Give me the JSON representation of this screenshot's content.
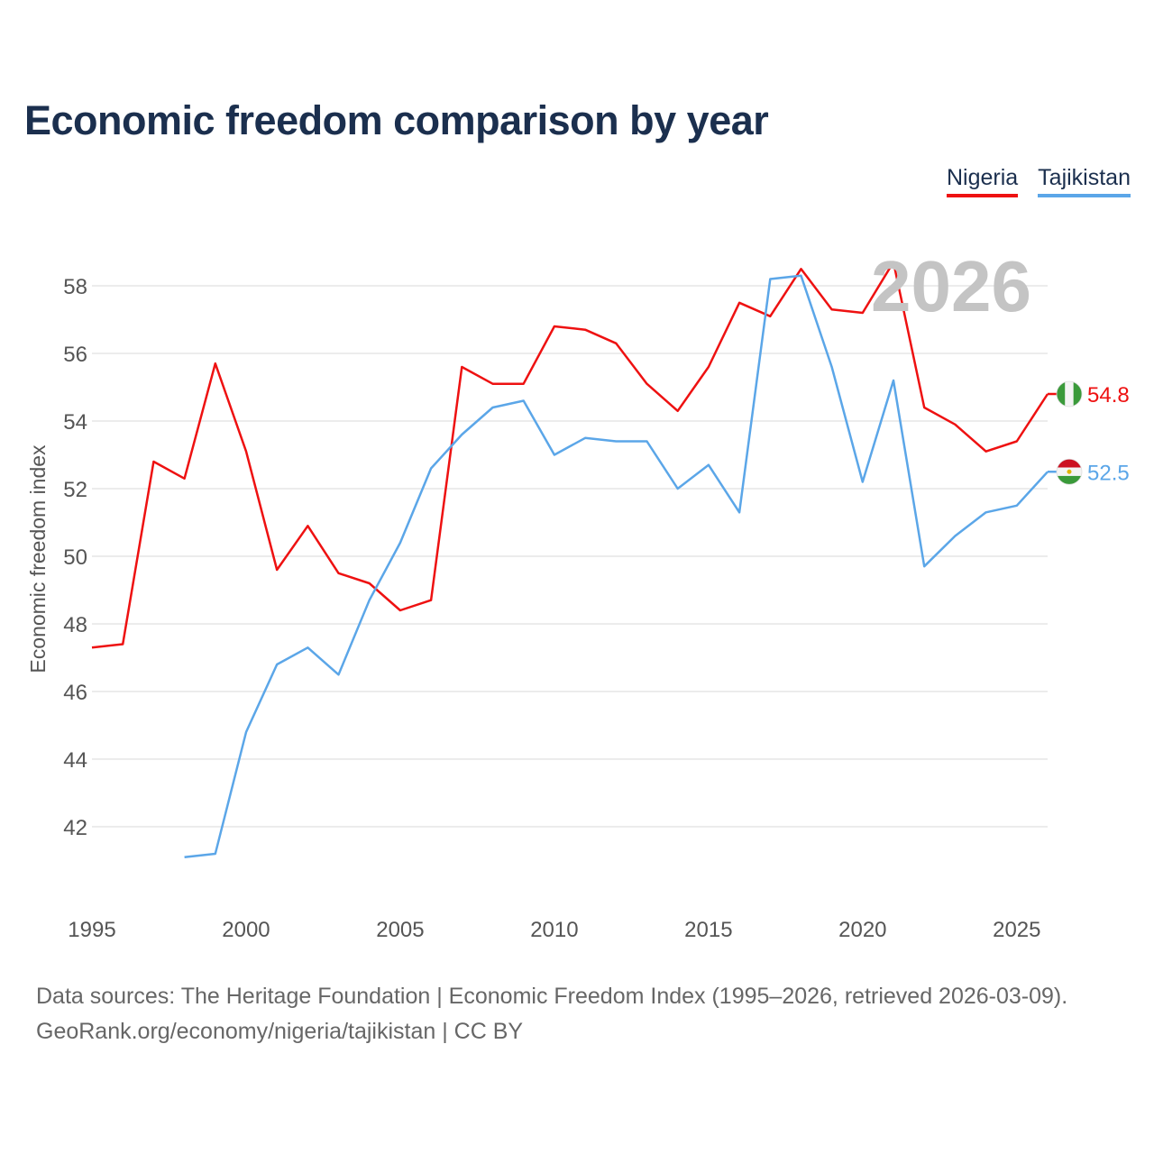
{
  "title": "Economic freedom comparison by year",
  "year_overlay": "2026",
  "footer": {
    "line1": "Data sources: The Heritage Foundation | Economic Freedom Index (1995–2026, retrieved 2026-03-09).",
    "line2": "GeoRank.org/economy/nigeria/tajikistan | CC BY"
  },
  "colors": {
    "nigeria": "#ee1111",
    "tajikistan": "#5ba6e8",
    "grid": "#e6e6e6"
  },
  "icons": {
    "nigeria": "nigeria-flag-icon",
    "tajikistan": "tajikistan-flag-icon"
  },
  "chart_data": {
    "type": "line",
    "title": "Economic freedom comparison by year",
    "xlabel": "",
    "ylabel": "Economic freedom index",
    "xlim": [
      1995,
      2026
    ],
    "ylim": [
      40,
      59.5
    ],
    "yticks": [
      42,
      44,
      46,
      48,
      50,
      52,
      54,
      56,
      58
    ],
    "xticks": [
      1995,
      2000,
      2005,
      2010,
      2015,
      2020,
      2025
    ],
    "legend": "top-right",
    "grid": true,
    "series": [
      {
        "name": "Nigeria",
        "end_label": "54.8",
        "x": [
          1995,
          1996,
          1997,
          1998,
          1999,
          2000,
          2001,
          2002,
          2003,
          2004,
          2005,
          2006,
          2007,
          2008,
          2009,
          2010,
          2011,
          2012,
          2013,
          2014,
          2015,
          2016,
          2017,
          2018,
          2019,
          2020,
          2021,
          2022,
          2023,
          2024,
          2025,
          2026
        ],
        "values": [
          47.3,
          47.4,
          52.8,
          52.3,
          55.7,
          53.1,
          49.6,
          50.9,
          49.5,
          49.2,
          48.4,
          48.7,
          55.6,
          55.1,
          55.1,
          56.8,
          56.7,
          56.3,
          55.1,
          54.3,
          55.6,
          57.5,
          57.1,
          58.5,
          57.3,
          57.2,
          58.7,
          54.4,
          53.9,
          53.1,
          53.4,
          54.8
        ]
      },
      {
        "name": "Tajikistan",
        "end_label": "52.5",
        "x": [
          1998,
          1999,
          2000,
          2001,
          2002,
          2003,
          2004,
          2005,
          2006,
          2007,
          2008,
          2009,
          2010,
          2011,
          2012,
          2013,
          2014,
          2015,
          2016,
          2017,
          2018,
          2019,
          2020,
          2021,
          2022,
          2023,
          2024,
          2025,
          2026
        ],
        "values": [
          41.1,
          41.2,
          44.8,
          46.8,
          47.3,
          46.5,
          48.7,
          50.4,
          52.6,
          53.6,
          54.4,
          54.6,
          53.0,
          53.5,
          53.4,
          53.4,
          52.0,
          52.7,
          51.3,
          58.2,
          58.3,
          55.6,
          52.2,
          55.2,
          49.7,
          50.6,
          51.3,
          51.5,
          52.5
        ]
      }
    ]
  }
}
